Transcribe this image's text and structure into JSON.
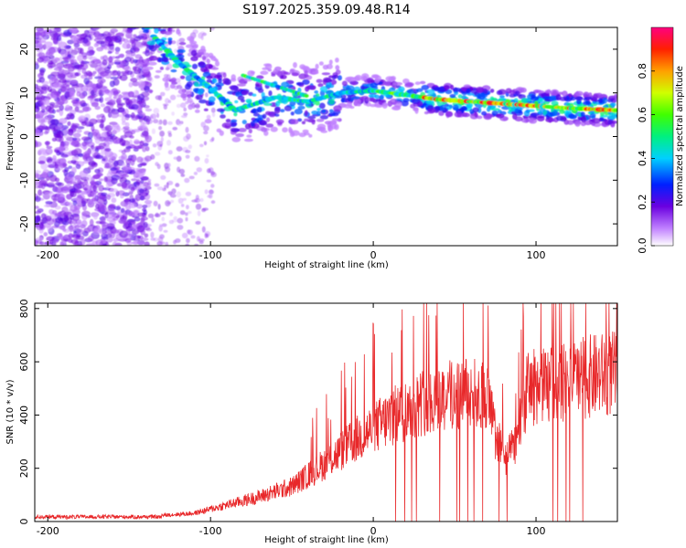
{
  "title": "S197.2025.359.09.48.R14",
  "chart_data": [
    {
      "type": "heatmap",
      "name": "spectrogram",
      "xlabel": "Height of straight line (km)",
      "ylabel": "Frequency (Hz)",
      "xlim": [
        -208,
        150
      ],
      "ylim": [
        -25,
        25
      ],
      "xticks": [
        -200,
        -100,
        0,
        100
      ],
      "xtick_labels": [
        "-200",
        "-100",
        "0",
        "100"
      ],
      "yticks": [
        -20,
        -10,
        0,
        10,
        20
      ],
      "ytick_labels": [
        "-20",
        "-10",
        "0",
        "10",
        "20"
      ],
      "ridge": {
        "description_points": [
          {
            "x": -135,
            "y": 23
          },
          {
            "x": -120,
            "y": 17
          },
          {
            "x": -100,
            "y": 11
          },
          {
            "x": -85,
            "y": 6
          },
          {
            "x": -60,
            "y": 9
          },
          {
            "x": -40,
            "y": 8
          },
          {
            "x": -20,
            "y": 10
          },
          {
            "x": 0,
            "y": 10.5
          },
          {
            "x": 40,
            "y": 8.5
          },
          {
            "x": 80,
            "y": 7.5
          },
          {
            "x": 120,
            "y": 6.5
          },
          {
            "x": 150,
            "y": 6
          }
        ]
      },
      "colorbar": {
        "label": "Normalized spectral amplitude",
        "range": [
          0,
          1
        ],
        "ticks": [
          0.0,
          0.2,
          0.4,
          0.6,
          0.8
        ],
        "tick_labels": [
          "0.0",
          "0.2",
          "0.4",
          "0.6",
          "0.8"
        ],
        "colormap": "rainbow"
      }
    },
    {
      "type": "line",
      "name": "snr",
      "xlabel": "Height of straight line (km)",
      "ylabel": "SNR (10 * v/v)",
      "xlim": [
        -208,
        150
      ],
      "ylim": [
        0,
        820
      ],
      "xticks": [
        -200,
        -100,
        0,
        100
      ],
      "xtick_labels": [
        "-200",
        "-100",
        "0",
        "100"
      ],
      "yticks": [
        0,
        200,
        400,
        600,
        800
      ],
      "ytick_labels": [
        "0",
        "200",
        "400",
        "600",
        "800"
      ],
      "color": "#e8282a",
      "envelope": [
        {
          "x": -208,
          "y": 20
        },
        {
          "x": -150,
          "y": 20
        },
        {
          "x": -130,
          "y": 30
        },
        {
          "x": -110,
          "y": 40
        },
        {
          "x": -90,
          "y": 80
        },
        {
          "x": -70,
          "y": 120
        },
        {
          "x": -50,
          "y": 170
        },
        {
          "x": -30,
          "y": 280
        },
        {
          "x": -10,
          "y": 400
        },
        {
          "x": 10,
          "y": 500
        },
        {
          "x": 30,
          "y": 580
        },
        {
          "x": 50,
          "y": 620
        },
        {
          "x": 70,
          "y": 610
        },
        {
          "x": 75,
          "y": 420
        },
        {
          "x": 82,
          "y": 300
        },
        {
          "x": 88,
          "y": 400
        },
        {
          "x": 95,
          "y": 650
        },
        {
          "x": 110,
          "y": 660
        },
        {
          "x": 130,
          "y": 700
        },
        {
          "x": 150,
          "y": 720
        }
      ]
    }
  ]
}
